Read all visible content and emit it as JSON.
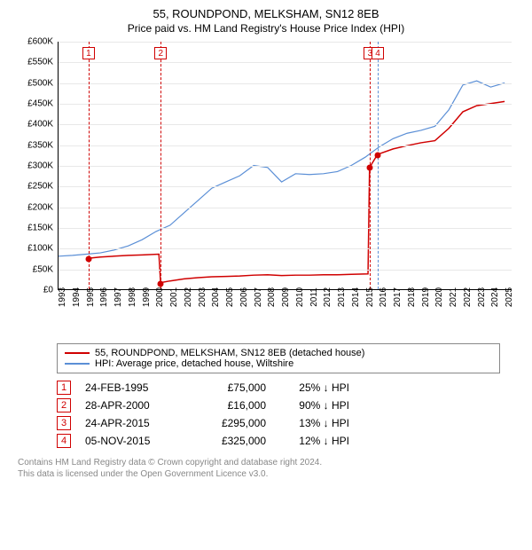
{
  "title_line1": "55, ROUNDPOND, MELKSHAM, SN12 8EB",
  "title_line2": "Price paid vs. HM Land Registry's House Price Index (HPI)",
  "chart": {
    "type": "line",
    "xmin": 1993,
    "xmax": 2025.5,
    "ymin": 0,
    "ymax": 600000,
    "ytick_step": 50000,
    "ytick_labels": [
      "£0",
      "£50K",
      "£100K",
      "£150K",
      "£200K",
      "£250K",
      "£300K",
      "£350K",
      "£400K",
      "£450K",
      "£500K",
      "£550K",
      "£600K"
    ],
    "xtick_years": [
      1993,
      1994,
      1995,
      1996,
      1997,
      1998,
      1999,
      2000,
      2001,
      2002,
      2003,
      2004,
      2005,
      2006,
      2007,
      2008,
      2009,
      2010,
      2011,
      2012,
      2013,
      2014,
      2015,
      2016,
      2017,
      2018,
      2019,
      2020,
      2021,
      2022,
      2023,
      2024,
      2025
    ],
    "background_color": "#ffffff",
    "grid_color": "#e8e8e8",
    "series_property": {
      "color": "#d00000",
      "width": 1.5,
      "points": [
        [
          1995.15,
          75000
        ],
        [
          1996,
          78000
        ],
        [
          1997,
          80000
        ],
        [
          1998,
          82000
        ],
        [
          1999,
          83000
        ],
        [
          2000.2,
          85000
        ],
        [
          2000.32,
          16000
        ],
        [
          2001,
          20000
        ],
        [
          2002,
          25000
        ],
        [
          2003,
          28000
        ],
        [
          2004,
          30000
        ],
        [
          2005,
          31000
        ],
        [
          2006,
          32000
        ],
        [
          2007,
          34000
        ],
        [
          2008,
          35000
        ],
        [
          2009,
          33000
        ],
        [
          2010,
          34000
        ],
        [
          2011,
          34000
        ],
        [
          2012,
          35000
        ],
        [
          2013,
          35000
        ],
        [
          2014,
          36000
        ],
        [
          2015.2,
          37000
        ],
        [
          2015.31,
          295000
        ],
        [
          2015.85,
          325000
        ],
        [
          2016,
          328000
        ],
        [
          2017,
          340000
        ],
        [
          2018,
          348000
        ],
        [
          2019,
          355000
        ],
        [
          2020,
          360000
        ],
        [
          2021,
          390000
        ],
        [
          2022,
          430000
        ],
        [
          2023,
          445000
        ],
        [
          2024,
          450000
        ],
        [
          2025,
          455000
        ]
      ],
      "markers": [
        [
          1995.15,
          75000
        ],
        [
          2000.32,
          16000
        ],
        [
          2015.31,
          295000
        ],
        [
          2015.85,
          325000
        ]
      ]
    },
    "series_hpi": {
      "color": "#5b8fd6",
      "width": 1.2,
      "points": [
        [
          1993,
          80000
        ],
        [
          1994,
          82000
        ],
        [
          1995,
          85000
        ],
        [
          1996,
          88000
        ],
        [
          1997,
          95000
        ],
        [
          1998,
          105000
        ],
        [
          1999,
          120000
        ],
        [
          2000,
          140000
        ],
        [
          2001,
          155000
        ],
        [
          2002,
          185000
        ],
        [
          2003,
          215000
        ],
        [
          2004,
          245000
        ],
        [
          2005,
          260000
        ],
        [
          2006,
          275000
        ],
        [
          2007,
          300000
        ],
        [
          2008,
          295000
        ],
        [
          2009,
          260000
        ],
        [
          2010,
          280000
        ],
        [
          2011,
          278000
        ],
        [
          2012,
          280000
        ],
        [
          2013,
          285000
        ],
        [
          2014,
          300000
        ],
        [
          2015,
          320000
        ],
        [
          2016,
          345000
        ],
        [
          2017,
          365000
        ],
        [
          2018,
          378000
        ],
        [
          2019,
          385000
        ],
        [
          2020,
          395000
        ],
        [
          2021,
          435000
        ],
        [
          2022,
          495000
        ],
        [
          2023,
          505000
        ],
        [
          2024,
          490000
        ],
        [
          2025,
          500000
        ]
      ]
    },
    "event_lines": [
      {
        "num": "1",
        "x": 1995.15,
        "color": "#d00000"
      },
      {
        "num": "2",
        "x": 2000.32,
        "color": "#d00000"
      },
      {
        "num": "3",
        "x": 2015.31,
        "color": "#d00000"
      },
      {
        "num": "4",
        "x": 2015.85,
        "color": "#5b8fd6"
      }
    ]
  },
  "legend": {
    "items": [
      {
        "color": "#d00000",
        "label": "55, ROUNDPOND, MELKSHAM, SN12 8EB (detached house)"
      },
      {
        "color": "#5b8fd6",
        "label": "HPI: Average price, detached house, Wiltshire"
      }
    ]
  },
  "events": [
    {
      "num": "1",
      "date": "24-FEB-1995",
      "price": "£75,000",
      "pct": "25% ↓ HPI"
    },
    {
      "num": "2",
      "date": "28-APR-2000",
      "price": "£16,000",
      "pct": "90% ↓ HPI"
    },
    {
      "num": "3",
      "date": "24-APR-2015",
      "price": "£295,000",
      "pct": "13% ↓ HPI"
    },
    {
      "num": "4",
      "date": "05-NOV-2015",
      "price": "£325,000",
      "pct": "12% ↓ HPI"
    }
  ],
  "footer_line1": "Contains HM Land Registry data © Crown copyright and database right 2024.",
  "footer_line2": "This data is licensed under the Open Government Licence v3.0."
}
